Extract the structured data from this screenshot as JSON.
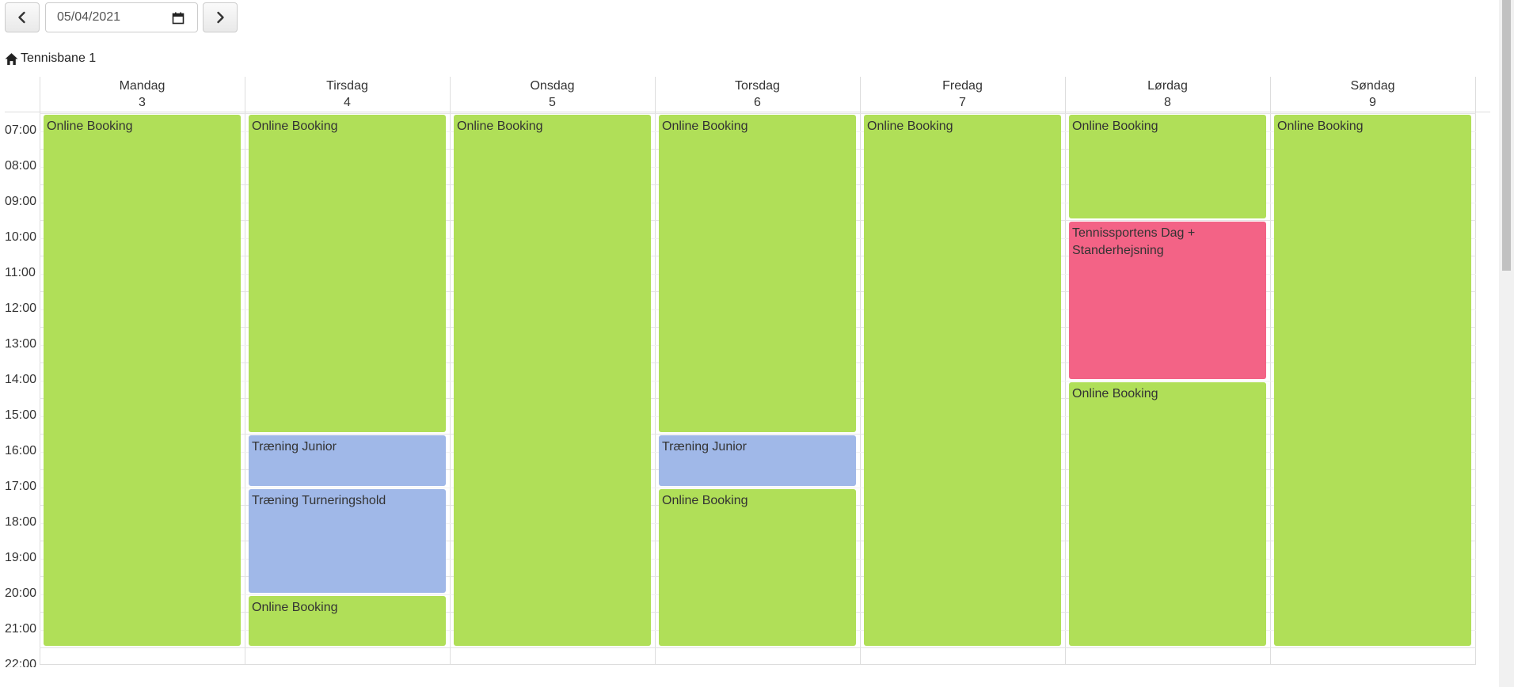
{
  "toolbar": {
    "date_value": "05/04/2021"
  },
  "resource": {
    "name": "Tennisbane 1"
  },
  "days": [
    {
      "name": "Mandag",
      "num": "3"
    },
    {
      "name": "Tirsdag",
      "num": "4"
    },
    {
      "name": "Onsdag",
      "num": "5"
    },
    {
      "name": "Torsdag",
      "num": "6"
    },
    {
      "name": "Fredag",
      "num": "7"
    },
    {
      "name": "Lørdag",
      "num": "8"
    },
    {
      "name": "Søndag",
      "num": "9"
    }
  ],
  "times": [
    "07:00",
    "08:00",
    "09:00",
    "10:00",
    "11:00",
    "12:00",
    "13:00",
    "14:00",
    "15:00",
    "16:00",
    "17:00",
    "18:00",
    "19:00",
    "20:00",
    "21:00",
    "22:00"
  ],
  "events": [
    {
      "day": 0,
      "start": "07:00",
      "end": "22:00",
      "title": "Online Booking",
      "color": "green"
    },
    {
      "day": 1,
      "start": "07:00",
      "end": "16:00",
      "title": "Online Booking",
      "color": "green"
    },
    {
      "day": 1,
      "start": "16:00",
      "end": "17:30",
      "title": "Træning Junior",
      "color": "blue"
    },
    {
      "day": 1,
      "start": "17:30",
      "end": "20:30",
      "title": "Træning Turneringshold",
      "color": "blue"
    },
    {
      "day": 1,
      "start": "20:30",
      "end": "22:00",
      "title": "Online Booking",
      "color": "green"
    },
    {
      "day": 2,
      "start": "07:00",
      "end": "22:00",
      "title": "Online Booking",
      "color": "green"
    },
    {
      "day": 3,
      "start": "07:00",
      "end": "16:00",
      "title": "Online Booking",
      "color": "green"
    },
    {
      "day": 3,
      "start": "16:00",
      "end": "17:30",
      "title": "Træning Junior",
      "color": "blue"
    },
    {
      "day": 3,
      "start": "17:30",
      "end": "22:00",
      "title": "Online Booking",
      "color": "green"
    },
    {
      "day": 4,
      "start": "07:00",
      "end": "22:00",
      "title": "Online Booking",
      "color": "green"
    },
    {
      "day": 5,
      "start": "07:00",
      "end": "10:00",
      "title": "Online Booking",
      "color": "green"
    },
    {
      "day": 5,
      "start": "10:00",
      "end": "14:30",
      "title": "Tennissportens Dag + Standerhejsning",
      "color": "red"
    },
    {
      "day": 5,
      "start": "14:30",
      "end": "22:00",
      "title": "Online Booking",
      "color": "green"
    },
    {
      "day": 6,
      "start": "07:00",
      "end": "22:00",
      "title": "Online Booking",
      "color": "green"
    }
  ],
  "icons": {
    "prev": "chevron-left-icon",
    "next": "chevron-right-icon",
    "calendar": "calendar-icon",
    "home": "home-icon"
  },
  "colors": {
    "green": "#b0df58",
    "blue": "#a0b8e8",
    "red": "#f36386"
  }
}
